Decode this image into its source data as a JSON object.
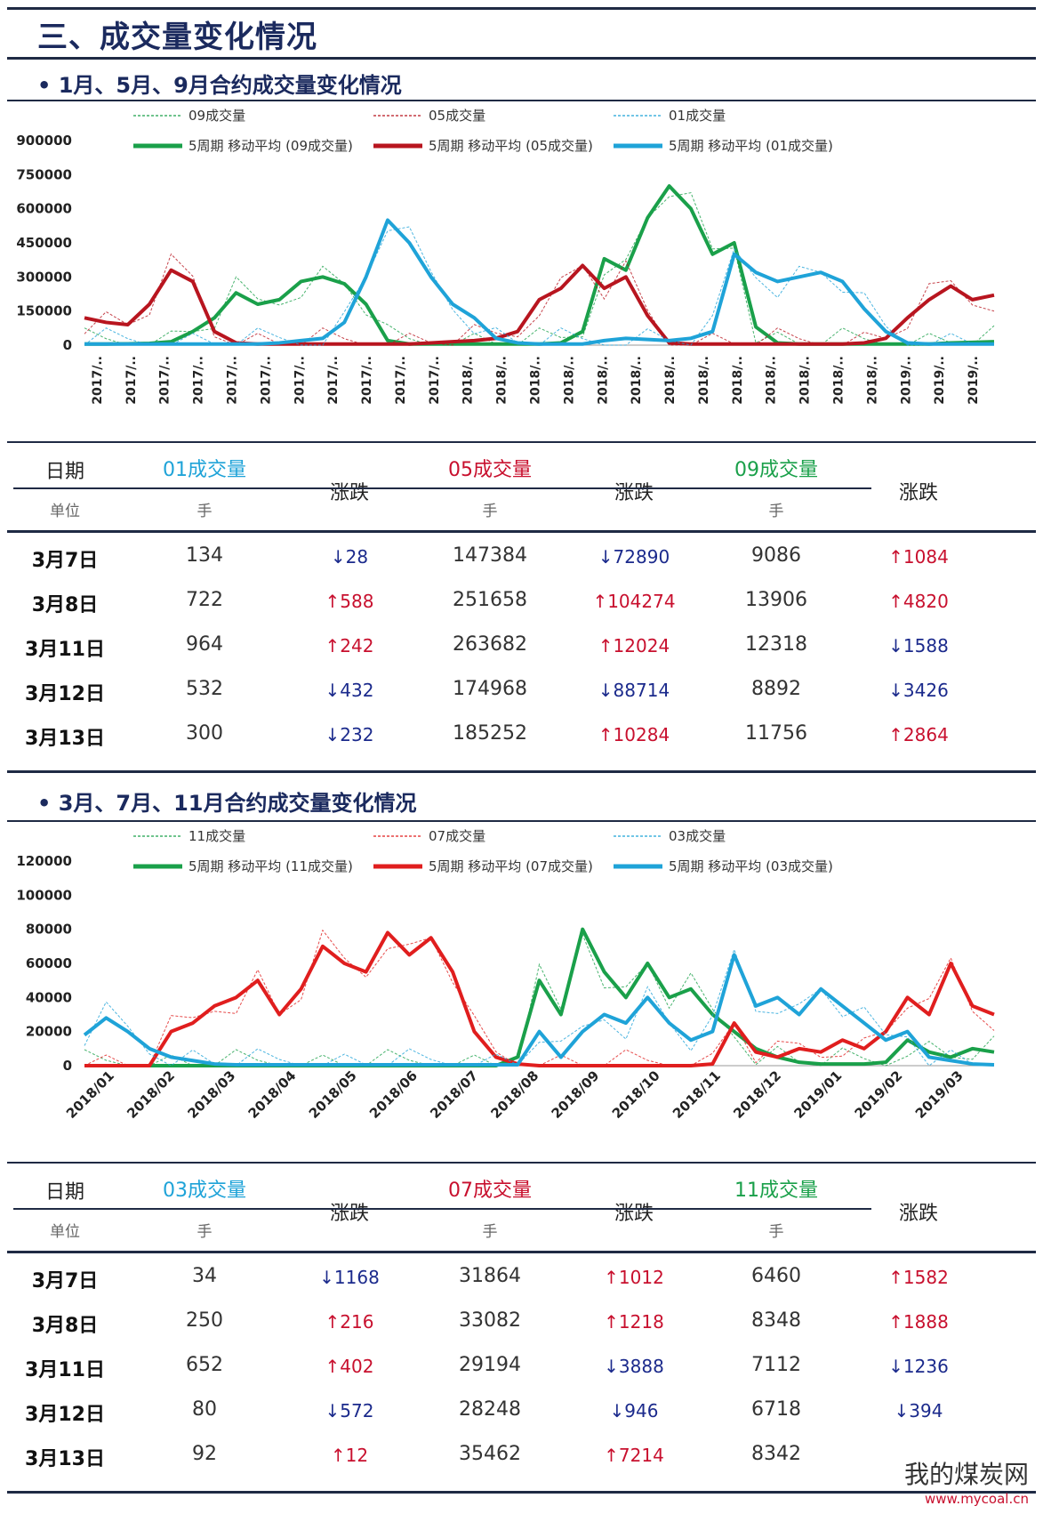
{
  "page": {
    "title": "三、成交量变化情况"
  },
  "section1": {
    "title": "• 1月、5月、9月合约成交量变化情况"
  },
  "section2": {
    "title": "• 3月、7月、11月合约成交量变化情况"
  },
  "chart_data": [
    {
      "type": "line",
      "title": "",
      "ylim": [
        0,
        900000
      ],
      "yticks": [
        "900000",
        "750000",
        "600000",
        "450000",
        "300000",
        "150000",
        "0"
      ],
      "xticklabels": [
        "2017/..",
        "2017/..",
        "2017/..",
        "2017/..",
        "2017/..",
        "2017/..",
        "2017/..",
        "2017/..",
        "2017/..",
        "2017/..",
        "2017/..",
        "2018/..",
        "2018/..",
        "2018/..",
        "2018/..",
        "2018/..",
        "2018/..",
        "2018/..",
        "2018/..",
        "2018/..",
        "2018/..",
        "2018/..",
        "2018/..",
        "2018/..",
        "2019/..",
        "2019/..",
        "2019/.."
      ],
      "legend": [
        "09成交量",
        "05成交量",
        "01成交量",
        "5周期 移动平均 (09成交量)",
        "5周期 移动平均 (05成交量)",
        "5周期 移动平均 (01成交量)"
      ],
      "series": [
        {
          "name": "5周期 移动平均 (09成交量)",
          "color": "#1aa04a",
          "values": [
            5000,
            5000,
            6000,
            8000,
            15000,
            60000,
            120000,
            230000,
            180000,
            200000,
            280000,
            300000,
            270000,
            180000,
            20000,
            5000,
            5000,
            5000,
            5000,
            5000,
            5000,
            5000,
            10000,
            60000,
            380000,
            330000,
            560000,
            700000,
            600000,
            400000,
            450000,
            80000,
            10000,
            5000,
            5000,
            5000,
            5000,
            5000,
            5000,
            5000,
            10000,
            12000,
            15000
          ]
        },
        {
          "name": "5周期 移动平均 (05成交量)",
          "color": "#b8151f",
          "values": [
            120000,
            100000,
            90000,
            180000,
            330000,
            280000,
            60000,
            10000,
            5000,
            5000,
            5000,
            5000,
            5000,
            5000,
            5000,
            5000,
            10000,
            15000,
            20000,
            30000,
            60000,
            200000,
            250000,
            350000,
            250000,
            300000,
            130000,
            10000,
            5000,
            5000,
            5000,
            5000,
            5000,
            5000,
            5000,
            5000,
            10000,
            30000,
            120000,
            200000,
            260000,
            200000,
            220000
          ]
        },
        {
          "name": "5周期 移动平均 (01成交量)",
          "color": "#1fa3d8",
          "values": [
            5000,
            5000,
            5000,
            5000,
            5000,
            5000,
            5000,
            5000,
            5000,
            10000,
            20000,
            30000,
            100000,
            300000,
            550000,
            450000,
            300000,
            180000,
            120000,
            30000,
            10000,
            5000,
            5000,
            5000,
            20000,
            30000,
            25000,
            20000,
            30000,
            60000,
            400000,
            320000,
            280000,
            300000,
            320000,
            280000,
            160000,
            60000,
            10000,
            5000,
            5000,
            5000,
            5000
          ]
        }
      ]
    },
    {
      "type": "line",
      "title": "",
      "ylim": [
        0,
        120000
      ],
      "yticks": [
        "120000",
        "100000",
        "80000",
        "60000",
        "40000",
        "20000",
        "0"
      ],
      "xticklabels": [
        "2018/01",
        "2018/02",
        "2018/03",
        "2018/04",
        "2018/05",
        "2018/06",
        "2018/07",
        "2018/08",
        "2018/09",
        "2018/10",
        "2018/11",
        "2018/12",
        "2019/01",
        "2019/02",
        "2019/03"
      ],
      "legend": [
        "11成交量",
        "07成交量",
        "03成交量",
        "5周期 移动平均 (11成交量)",
        "5周期 移动平均 (07成交量)",
        "5周期 移动平均 (03成交量)"
      ],
      "series": [
        {
          "name": "5周期 移动平均 (11成交量)",
          "color": "#1aa04a",
          "values": [
            0,
            0,
            0,
            0,
            0,
            0,
            0,
            0,
            0,
            0,
            0,
            0,
            0,
            0,
            0,
            0,
            0,
            0,
            0,
            0,
            5000,
            50000,
            30000,
            80000,
            55000,
            40000,
            60000,
            40000,
            45000,
            30000,
            20000,
            10000,
            5000,
            2000,
            1000,
            1000,
            1000,
            2000,
            15000,
            8000,
            5000,
            10000,
            8000
          ]
        },
        {
          "name": "5周期 移动平均 (07成交量)",
          "color": "#e01e1e",
          "values": [
            0,
            0,
            0,
            0,
            20000,
            25000,
            35000,
            40000,
            50000,
            30000,
            45000,
            70000,
            60000,
            55000,
            78000,
            65000,
            75000,
            55000,
            20000,
            5000,
            1000,
            0,
            0,
            0,
            0,
            0,
            0,
            0,
            0,
            1000,
            25000,
            8000,
            5000,
            10000,
            8000,
            15000,
            10000,
            20000,
            40000,
            30000,
            60000,
            35000,
            30000
          ]
        },
        {
          "name": "5周期 移动平均 (03成交量)",
          "color": "#1fa3d8",
          "values": [
            18000,
            28000,
            20000,
            10000,
            5000,
            3000,
            1000,
            500,
            500,
            500,
            500,
            500,
            500,
            500,
            500,
            500,
            500,
            500,
            500,
            500,
            500,
            20000,
            5000,
            20000,
            30000,
            25000,
            40000,
            25000,
            15000,
            20000,
            65000,
            35000,
            40000,
            30000,
            45000,
            35000,
            25000,
            15000,
            20000,
            5000,
            3000,
            1000,
            500
          ]
        }
      ]
    }
  ],
  "table1": {
    "date_header": "日期",
    "unit_label": "单位",
    "change_header": "涨跌",
    "groups": [
      {
        "title": "01成交量",
        "color": "#1fa3d8",
        "unit": "手"
      },
      {
        "title": "05成交量",
        "color": "#c8102e",
        "unit": "手"
      },
      {
        "title": "09成交量",
        "color": "#1aa04a",
        "unit": "手"
      }
    ],
    "rows": [
      {
        "date": "3月7日",
        "v1": "134",
        "c1": "↓28",
        "d1": "down",
        "v2": "147384",
        "c2": "↓72890",
        "d2": "down",
        "v3": "9086",
        "c3": "↑1084",
        "d3": "up"
      },
      {
        "date": "3月8日",
        "v1": "722",
        "c1": "↑588",
        "d1": "up",
        "v2": "251658",
        "c2": "↑104274",
        "d2": "up",
        "v3": "13906",
        "c3": "↑4820",
        "d3": "up"
      },
      {
        "date": "3月11日",
        "v1": "964",
        "c1": "↑242",
        "d1": "up",
        "v2": "263682",
        "c2": "↑12024",
        "d2": "up",
        "v3": "12318",
        "c3": "↓1588",
        "d3": "down"
      },
      {
        "date": "3月12日",
        "v1": "532",
        "c1": "↓432",
        "d1": "down",
        "v2": "174968",
        "c2": "↓88714",
        "d2": "down",
        "v3": "8892",
        "c3": "↓3426",
        "d3": "down"
      },
      {
        "date": "3月13日",
        "v1": "300",
        "c1": "↓232",
        "d1": "down",
        "v2": "185252",
        "c2": "↑10284",
        "d2": "up",
        "v3": "11756",
        "c3": "↑2864",
        "d3": "up"
      }
    ]
  },
  "table2": {
    "date_header": "日期",
    "unit_label": "单位",
    "change_header": "涨跌",
    "groups": [
      {
        "title": "03成交量",
        "color": "#1fa3d8",
        "unit": "手"
      },
      {
        "title": "07成交量",
        "color": "#c8102e",
        "unit": "手"
      },
      {
        "title": "11成交量",
        "color": "#1aa04a",
        "unit": "手"
      }
    ],
    "rows": [
      {
        "date": "3月7日",
        "v1": "34",
        "c1": "↓1168",
        "d1": "down",
        "v2": "31864",
        "c2": "↑1012",
        "d2": "up",
        "v3": "6460",
        "c3": "↑1582",
        "d3": "up"
      },
      {
        "date": "3月8日",
        "v1": "250",
        "c1": "↑216",
        "d1": "up",
        "v2": "33082",
        "c2": "↑1218",
        "d2": "up",
        "v3": "8348",
        "c3": "↑1888",
        "d3": "up"
      },
      {
        "date": "3月11日",
        "v1": "652",
        "c1": "↑402",
        "d1": "up",
        "v2": "29194",
        "c2": "↓3888",
        "d2": "down",
        "v3": "7112",
        "c3": "↓1236",
        "d3": "down"
      },
      {
        "date": "3月12日",
        "v1": "80",
        "c1": "↓572",
        "d1": "down",
        "v2": "28248",
        "c2": "↓946",
        "d2": "down",
        "v3": "6718",
        "c3": "↓394",
        "d3": "down"
      },
      {
        "date": "3月13日",
        "v1": "92",
        "c1": "↑12",
        "d1": "up",
        "v2": "35462",
        "c2": "↑7214",
        "d2": "up",
        "v3": "8342",
        "c3": "",
        "d3": "up"
      }
    ]
  },
  "watermark": {
    "text": "我的煤炭网",
    "url": "www.mycoal.cn"
  }
}
